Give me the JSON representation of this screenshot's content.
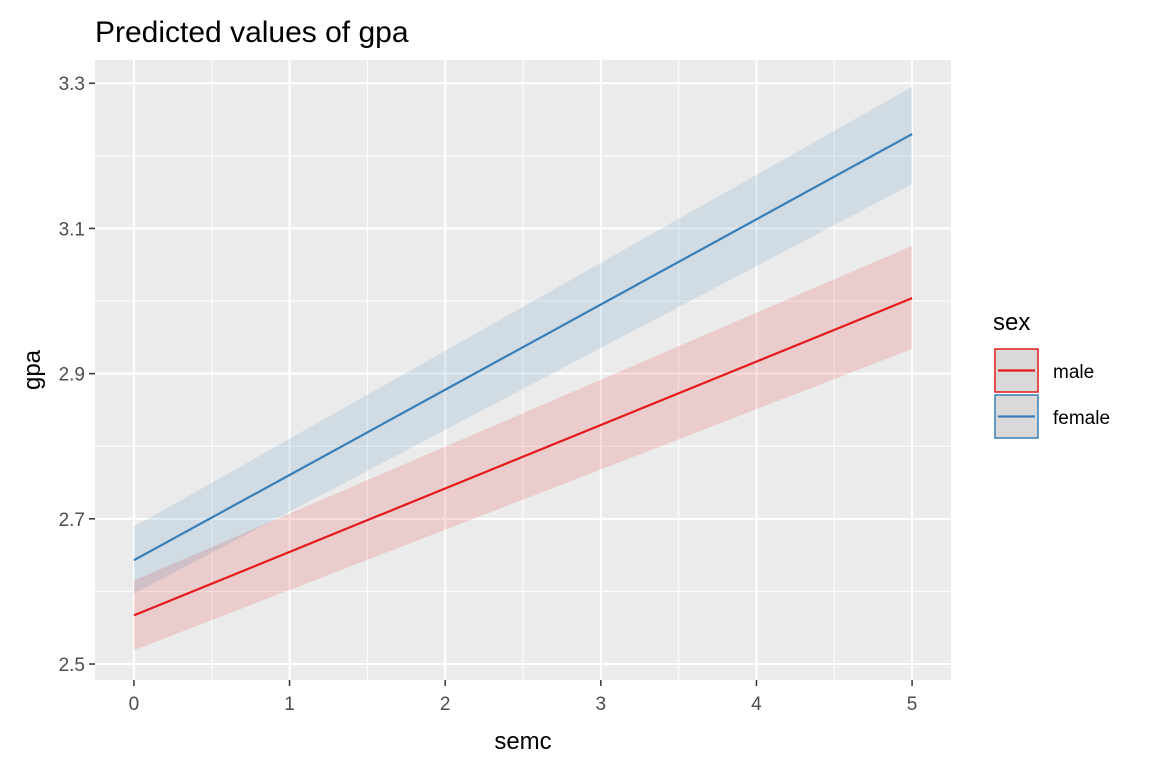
{
  "chart_data": {
    "type": "line",
    "title": "Predicted values of gpa",
    "xlabel": "semc",
    "ylabel": "gpa",
    "xlim": [
      -0.25,
      5.25
    ],
    "ylim": [
      2.478,
      3.332
    ],
    "x_ticks": [
      0,
      1,
      2,
      3,
      4,
      5
    ],
    "x_tick_labels": [
      "0",
      "1",
      "2",
      "3",
      "4",
      "5"
    ],
    "y_ticks": [
      2.5,
      2.7,
      2.9,
      3.1,
      3.3
    ],
    "y_tick_labels": [
      "2.5",
      "2.7",
      "2.9",
      "3.1",
      "3.3"
    ],
    "grid": true,
    "legend": {
      "title": "sex",
      "placement": "right"
    },
    "series": [
      {
        "name": "male",
        "color": "#e41a1c",
        "x": [
          0,
          5
        ],
        "values": [
          2.567,
          3.004
        ],
        "ci_lower": [
          2.519,
          2.934
        ],
        "ci_upper": [
          2.615,
          3.076
        ]
      },
      {
        "name": "female",
        "color": "#377eb8",
        "x": [
          0,
          5
        ],
        "values": [
          2.643,
          3.23
        ],
        "ci_lower": [
          2.597,
          3.161
        ],
        "ci_upper": [
          2.689,
          3.295
        ]
      }
    ],
    "panel_background": "#ebebeb",
    "grid_color": "#ffffff"
  }
}
